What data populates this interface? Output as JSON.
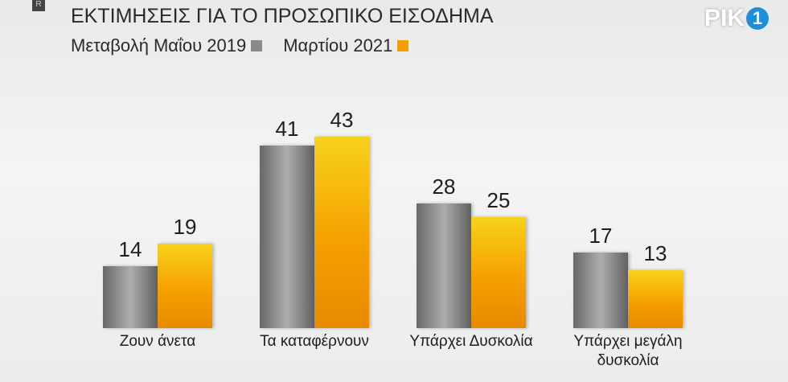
{
  "chart_data": {
    "type": "bar",
    "title": "ΕΚΤΙΜΗΣΕΙΣ ΓΙΑ ΤΟ ΠΡΟΣΩΠΙΚΟ ΕΙΣΟΔΗΜΑ",
    "subtitle": "Μεταβολή",
    "logo": {
      "text": "ΡΙΚ",
      "number": "1"
    },
    "corner_badge": "R",
    "categories": [
      "Ζουν άνετα",
      "Τα καταφέρνουν",
      "Υπάρχει Δυσκολία",
      "Υπάρχει μεγάλη δυσκολία"
    ],
    "series": [
      {
        "name": "Μαΐου 2019",
        "color": "#8a8a8c",
        "values": [
          14,
          41,
          28,
          17
        ]
      },
      {
        "name": "Μαρτίου 2021",
        "color": "#f5a000",
        "values": [
          19,
          43,
          25,
          13
        ]
      }
    ],
    "legend": "top-left"
  }
}
